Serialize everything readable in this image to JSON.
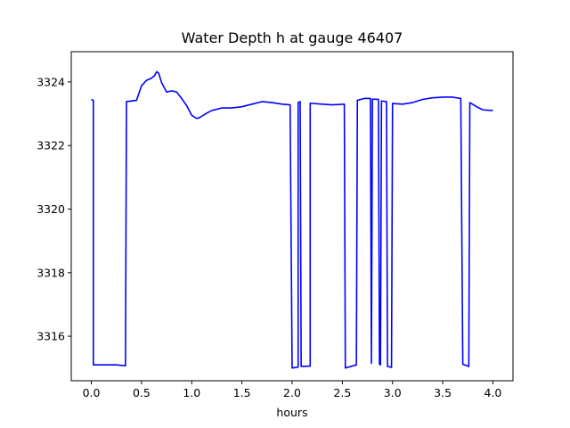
{
  "chart_data": {
    "type": "line",
    "title": "Water Depth h at gauge 46407",
    "xlabel": "hours",
    "ylabel": "",
    "xlim": [
      -0.2,
      4.2
    ],
    "ylim": [
      3314.6,
      3324.95
    ],
    "xticks": [
      0.0,
      0.5,
      1.0,
      1.5,
      2.0,
      2.5,
      3.0,
      3.5,
      4.0
    ],
    "xtick_labels": [
      "0.0",
      "0.5",
      "1.0",
      "1.5",
      "2.0",
      "2.5",
      "3.0",
      "3.5",
      "4.0"
    ],
    "yticks": [
      3316,
      3318,
      3320,
      3322,
      3324
    ],
    "ytick_labels": [
      "3316",
      "3318",
      "3320",
      "3322",
      "3324"
    ],
    "grid": false,
    "series": [
      {
        "name": "",
        "color": "#0000ff",
        "x": [
          0.0,
          0.02,
          0.02,
          0.25,
          0.34,
          0.35,
          0.45,
          0.5,
          0.55,
          0.6,
          0.63,
          0.65,
          0.67,
          0.7,
          0.75,
          0.8,
          0.85,
          0.9,
          0.95,
          1.0,
          1.05,
          1.08,
          1.1,
          1.15,
          1.2,
          1.3,
          1.4,
          1.5,
          1.6,
          1.7,
          1.8,
          1.9,
          1.98,
          2.0,
          2.06,
          2.06,
          2.08,
          2.09,
          2.18,
          2.18,
          2.3,
          2.4,
          2.52,
          2.53,
          2.64,
          2.65,
          2.72,
          2.78,
          2.79,
          2.8,
          2.86,
          2.87,
          2.88,
          2.89,
          2.94,
          2.95,
          2.99,
          3.0,
          3.1,
          3.2,
          3.3,
          3.4,
          3.5,
          3.6,
          3.68,
          3.7,
          3.76,
          3.77,
          3.85,
          3.9,
          4.0
        ],
        "y": [
          3323.45,
          3323.42,
          3315.1,
          3315.1,
          3315.07,
          3323.38,
          3323.42,
          3323.88,
          3324.05,
          3324.12,
          3324.2,
          3324.32,
          3324.28,
          3323.98,
          3323.68,
          3323.72,
          3323.68,
          3323.48,
          3323.25,
          3322.95,
          3322.85,
          3322.88,
          3322.92,
          3323.02,
          3323.1,
          3323.18,
          3323.18,
          3323.22,
          3323.3,
          3323.38,
          3323.35,
          3323.3,
          3323.28,
          3315.0,
          3315.03,
          3323.35,
          3323.38,
          3315.05,
          3315.06,
          3323.33,
          3323.3,
          3323.28,
          3323.3,
          3315.0,
          3315.1,
          3323.42,
          3323.48,
          3323.48,
          3315.15,
          3323.46,
          3323.45,
          3315.12,
          3315.1,
          3323.4,
          3323.38,
          3315.05,
          3315.02,
          3323.32,
          3323.3,
          3323.35,
          3323.45,
          3323.5,
          3323.52,
          3323.52,
          3323.48,
          3315.12,
          3315.05,
          3323.35,
          3323.2,
          3323.12,
          3323.1
        ]
      }
    ]
  }
}
